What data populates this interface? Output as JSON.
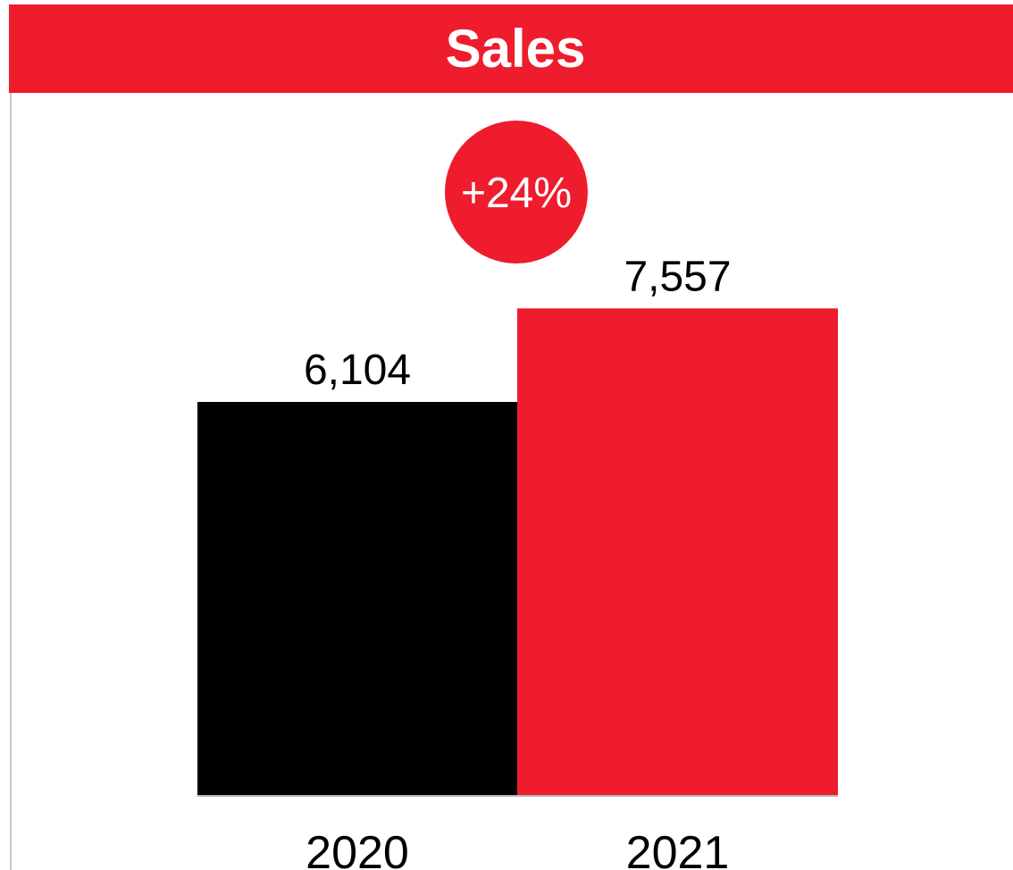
{
  "title": "Sales",
  "colors": {
    "accent": "#ee1c2d",
    "bar_2020": "#000000",
    "bar_2021": "#ee1c2d",
    "badge_text": "#ffffff",
    "baseline": "#b5b5b5"
  },
  "chart_data": {
    "type": "bar",
    "categories": [
      "2020",
      "2021"
    ],
    "values": [
      6104,
      7557
    ],
    "value_labels": [
      "6,104",
      "7,557"
    ],
    "change_badge": "+24%",
    "title": "Sales",
    "xlabel": "",
    "ylabel": "",
    "grid": false,
    "legend": "none"
  }
}
